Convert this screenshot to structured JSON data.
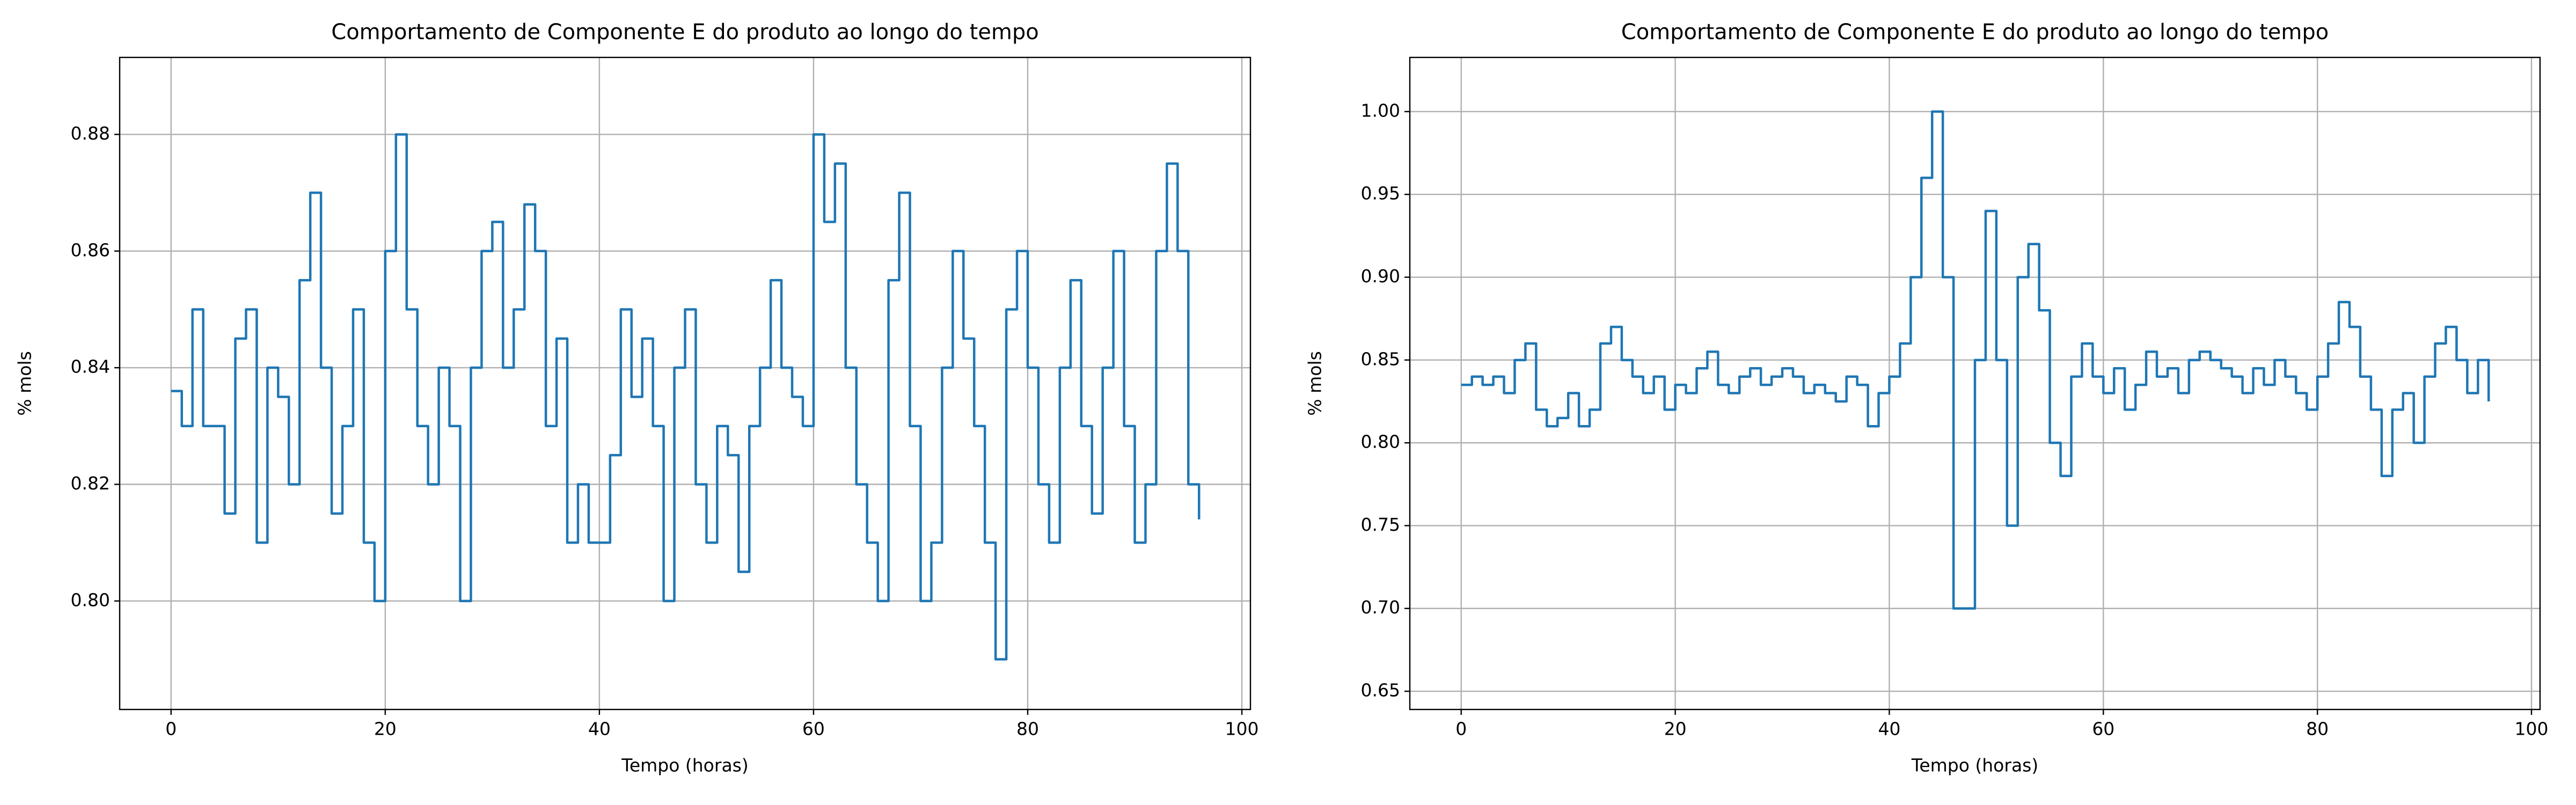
{
  "chart_data": [
    {
      "type": "line",
      "drawstyle": "steps-post",
      "title": "Comportamento de Componente E do produto ao longo do tempo",
      "x_label": "Tempo (horas)",
      "y_label": "% mols",
      "grid": true,
      "xlim": [
        -4.8,
        100.8
      ],
      "ylim": [
        0.7814,
        0.8932
      ],
      "xticks": [
        0,
        20,
        40,
        60,
        80,
        100
      ],
      "yticks": [
        {
          "value": 0.8,
          "label": "0.80"
        },
        0.82,
        0.84,
        0.86,
        0.88
      ],
      "x": [
        0,
        1,
        2,
        3,
        4,
        5,
        6,
        7,
        8,
        9,
        10,
        11,
        12,
        13,
        14,
        15,
        16,
        17,
        18,
        19,
        20,
        21,
        22,
        23,
        24,
        25,
        26,
        27,
        28,
        29,
        30,
        31,
        32,
        33,
        34,
        35,
        36,
        37,
        38,
        39,
        40,
        41,
        42,
        43,
        44,
        45,
        46,
        47,
        48,
        49,
        50,
        51,
        52,
        53,
        54,
        55,
        56,
        57,
        58,
        59,
        60,
        61,
        62,
        63,
        64,
        65,
        66,
        67,
        68,
        69,
        70,
        71,
        72,
        73,
        74,
        75,
        76,
        77,
        78,
        79,
        80,
        81,
        82,
        83,
        84,
        85,
        86,
        87,
        88,
        89,
        90,
        91,
        92,
        93,
        94,
        95,
        96
      ],
      "series": [
        {
          "color": "#1f77b4",
          "values": [
            0.836,
            0.83,
            0.85,
            0.83,
            0.83,
            0.815,
            0.845,
            0.85,
            0.81,
            0.84,
            0.835,
            0.82,
            0.855,
            0.87,
            0.84,
            0.815,
            0.83,
            0.85,
            0.81,
            0.8,
            0.86,
            0.88,
            0.85,
            0.83,
            0.82,
            0.84,
            0.83,
            0.8,
            0.84,
            0.86,
            0.865,
            0.84,
            0.85,
            0.868,
            0.86,
            0.83,
            0.845,
            0.81,
            0.82,
            0.81,
            0.81,
            0.825,
            0.85,
            0.835,
            0.845,
            0.83,
            0.8,
            0.84,
            0.85,
            0.82,
            0.81,
            0.83,
            0.825,
            0.805,
            0.83,
            0.84,
            0.855,
            0.84,
            0.835,
            0.83,
            0.88,
            0.865,
            0.875,
            0.84,
            0.82,
            0.81,
            0.8,
            0.855,
            0.87,
            0.83,
            0.8,
            0.81,
            0.84,
            0.86,
            0.845,
            0.83,
            0.81,
            0.79,
            0.85,
            0.86,
            0.84,
            0.82,
            0.81,
            0.84,
            0.855,
            0.83,
            0.815,
            0.84,
            0.86,
            0.83,
            0.81,
            0.82,
            0.86,
            0.875,
            0.86,
            0.82,
            0.814
          ]
        }
      ]
    },
    {
      "type": "line",
      "drawstyle": "steps-post",
      "title": "Comportamento de Componente E do produto ao longo do tempo",
      "x_label": "Tempo (horas)",
      "y_label": "% mols",
      "grid": true,
      "xlim": [
        -4.8,
        100.8
      ],
      "ylim": [
        0.639,
        1.0327
      ],
      "xticks": [
        0,
        20,
        40,
        60,
        80,
        100
      ],
      "yticks": [
        0.65,
        {
          "value": 0.7,
          "label": "0.70"
        },
        0.75,
        {
          "value": 0.8,
          "label": "0.80"
        },
        0.85,
        {
          "value": 0.9,
          "label": "0.90"
        },
        0.95,
        {
          "value": 1,
          "label": "1.00"
        }
      ],
      "x": [
        0,
        1,
        2,
        3,
        4,
        5,
        6,
        7,
        8,
        9,
        10,
        11,
        12,
        13,
        14,
        15,
        16,
        17,
        18,
        19,
        20,
        21,
        22,
        23,
        24,
        25,
        26,
        27,
        28,
        29,
        30,
        31,
        32,
        33,
        34,
        35,
        36,
        37,
        38,
        39,
        40,
        41,
        42,
        43,
        44,
        45,
        46,
        47,
        48,
        49,
        50,
        51,
        52,
        53,
        54,
        55,
        56,
        57,
        58,
        59,
        60,
        61,
        62,
        63,
        64,
        65,
        66,
        67,
        68,
        69,
        70,
        71,
        72,
        73,
        74,
        75,
        76,
        77,
        78,
        79,
        80,
        81,
        82,
        83,
        84,
        85,
        86,
        87,
        88,
        89,
        90,
        91,
        92,
        93,
        94,
        95,
        96
      ],
      "series": [
        {
          "color": "#1f77b4",
          "values": [
            0.835,
            0.84,
            0.835,
            0.84,
            0.83,
            0.85,
            0.86,
            0.82,
            0.81,
            0.815,
            0.83,
            0.81,
            0.82,
            0.86,
            0.87,
            0.85,
            0.84,
            0.83,
            0.84,
            0.82,
            0.835,
            0.83,
            0.845,
            0.855,
            0.835,
            0.83,
            0.84,
            0.845,
            0.835,
            0.84,
            0.845,
            0.84,
            0.83,
            0.835,
            0.83,
            0.825,
            0.84,
            0.835,
            0.81,
            0.83,
            0.84,
            0.86,
            0.9,
            0.96,
            1.0,
            0.9,
            0.7,
            0.7,
            0.85,
            0.94,
            0.85,
            0.75,
            0.9,
            0.92,
            0.88,
            0.8,
            0.78,
            0.84,
            0.86,
            0.84,
            0.83,
            0.845,
            0.82,
            0.835,
            0.855,
            0.84,
            0.845,
            0.83,
            0.85,
            0.855,
            0.85,
            0.845,
            0.84,
            0.83,
            0.845,
            0.835,
            0.85,
            0.84,
            0.83,
            0.82,
            0.84,
            0.86,
            0.885,
            0.87,
            0.84,
            0.82,
            0.78,
            0.82,
            0.83,
            0.8,
            0.84,
            0.86,
            0.87,
            0.85,
            0.83,
            0.85,
            0.825
          ]
        }
      ]
    }
  ]
}
